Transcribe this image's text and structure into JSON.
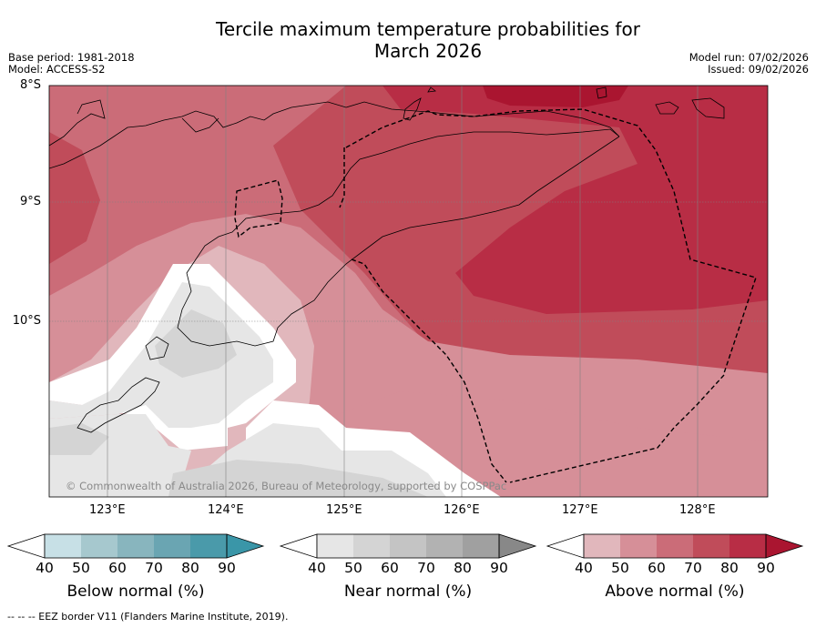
{
  "title_line1": "Tercile maximum temperature probabilities for",
  "title_line2": "March 2026",
  "base_period": "Base period: 1981-2018",
  "model": "Model: ACCESS-S2",
  "model_run": "Model run: 07/02/2026",
  "issued": "Issued: 09/02/2026",
  "lat_ticks": [
    "8°S",
    "9°S",
    "10°S"
  ],
  "lon_ticks": [
    "123°E",
    "124°E",
    "125°E",
    "126°E",
    "127°E",
    "128°E"
  ],
  "copyright": "© Commonwealth of Australia 2026, Bureau of Meteorology, supported by COSPPac",
  "footer": "--  --  -- EEZ border V11 (Flanders Marine Institute, 2019).",
  "colorbars": [
    {
      "label": "Below normal (%)",
      "ticks": [
        "40",
        "50",
        "60",
        "70",
        "80",
        "90"
      ],
      "colors": [
        "#c7e0e6",
        "#a6c8ce",
        "#88b5be",
        "#6aa5b2",
        "#4a9aaa"
      ],
      "extend": "#3a96a8"
    },
    {
      "label": "Near normal (%)",
      "ticks": [
        "40",
        "50",
        "60",
        "70",
        "80",
        "90"
      ],
      "colors": [
        "#e6e6e6",
        "#d4d4d4",
        "#c4c4c4",
        "#b2b2b2",
        "#a0a0a0"
      ],
      "extend": "#888888"
    },
    {
      "label": "Above normal (%)",
      "ticks": [
        "40",
        "50",
        "60",
        "70",
        "80",
        "90"
      ],
      "colors": [
        "#e1b7bc",
        "#d68f98",
        "#cb6c78",
        "#c04c5a",
        "#b82d45"
      ],
      "extend": "#aa1530"
    }
  ]
}
